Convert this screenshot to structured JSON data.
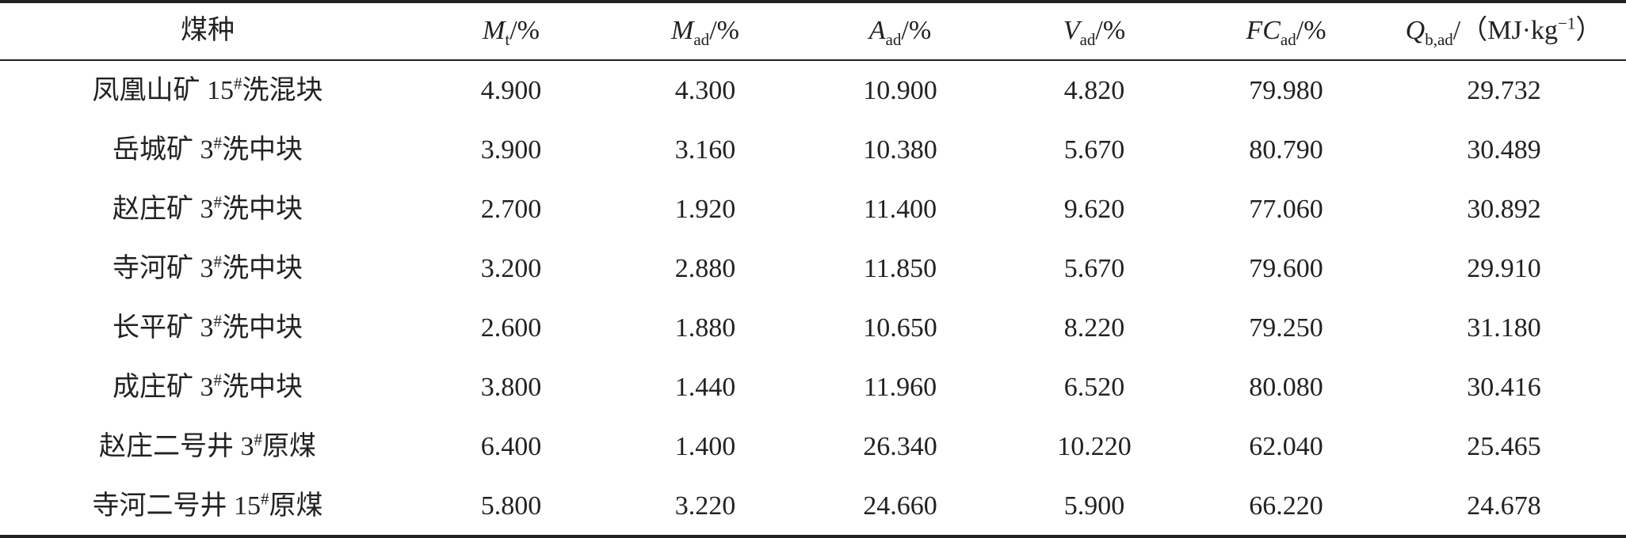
{
  "table": {
    "header": [
      [
        "煤种"
      ],
      [
        "M",
        "t",
        "/%"
      ],
      [
        "M",
        "ad",
        "/%"
      ],
      [
        "A",
        "ad",
        "/%"
      ],
      [
        "V",
        "ad",
        "/%"
      ],
      [
        "FC",
        "ad",
        "/%"
      ],
      [
        "Q",
        "b,ad",
        "/（MJ·kg",
        "−1",
        "）"
      ]
    ],
    "rows": [
      [
        [
          "凤凰山矿 15",
          "#",
          "洗混块"
        ],
        "4.900",
        "4.300",
        "10.900",
        "4.820",
        "79.980",
        "29.732"
      ],
      [
        [
          "岳城矿 3",
          "#",
          "洗中块"
        ],
        "3.900",
        "3.160",
        "10.380",
        "5.670",
        "80.790",
        "30.489"
      ],
      [
        [
          "赵庄矿 3",
          "#",
          "洗中块"
        ],
        "2.700",
        "1.920",
        "11.400",
        "9.620",
        "77.060",
        "30.892"
      ],
      [
        [
          "寺河矿 3",
          "#",
          "洗中块"
        ],
        "3.200",
        "2.880",
        "11.850",
        "5.670",
        "79.600",
        "29.910"
      ],
      [
        [
          "长平矿 3",
          "#",
          "洗中块"
        ],
        "2.600",
        "1.880",
        "10.650",
        "8.220",
        "79.250",
        "31.180"
      ],
      [
        [
          "成庄矿 3",
          "#",
          "洗中块"
        ],
        "3.800",
        "1.440",
        "11.960",
        "6.520",
        "80.080",
        "30.416"
      ],
      [
        [
          "赵庄二号井 3",
          "#",
          "原煤"
        ],
        "6.400",
        "1.400",
        "26.340",
        "10.220",
        "62.040",
        "25.465"
      ],
      [
        [
          "寺河二号井 15",
          "#",
          "原煤"
        ],
        "5.800",
        "3.220",
        "24.660",
        "5.900",
        "66.220",
        "24.678"
      ]
    ]
  }
}
